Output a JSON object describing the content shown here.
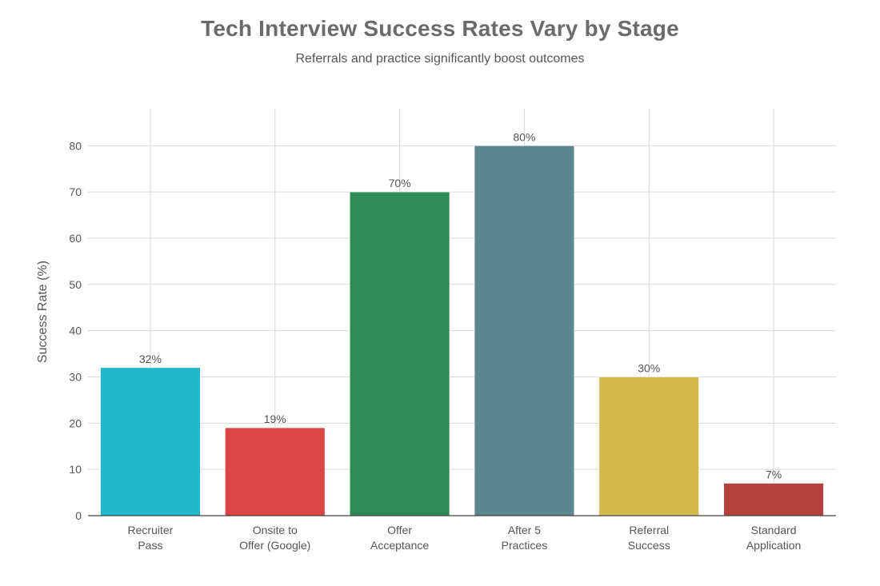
{
  "chart_data": {
    "type": "bar",
    "title": "Tech Interview Success Rates Vary by Stage",
    "subtitle": "Referrals and practice significantly boost outcomes",
    "xlabel": "",
    "ylabel": "Success Rate (%)",
    "ylim": [
      0,
      88
    ],
    "yticks": [
      0,
      10,
      20,
      30,
      40,
      50,
      60,
      70,
      80
    ],
    "grid": true,
    "categories": [
      [
        "Recruiter",
        "Pass"
      ],
      [
        "Onsite to",
        "Offer (Google)"
      ],
      [
        "Offer",
        "Acceptance"
      ],
      [
        "After 5",
        "Practices"
      ],
      [
        "Referral",
        "Success"
      ],
      [
        "Standard",
        "Application"
      ]
    ],
    "values": [
      32,
      19,
      70,
      80,
      30,
      7
    ],
    "data_labels": [
      "32%",
      "19%",
      "70%",
      "80%",
      "30%",
      "7%"
    ],
    "colors": [
      "#1fb8cd",
      "#db4545",
      "#2e8b57",
      "#5d878f",
      "#d2ba4c",
      "#b4413c"
    ]
  }
}
